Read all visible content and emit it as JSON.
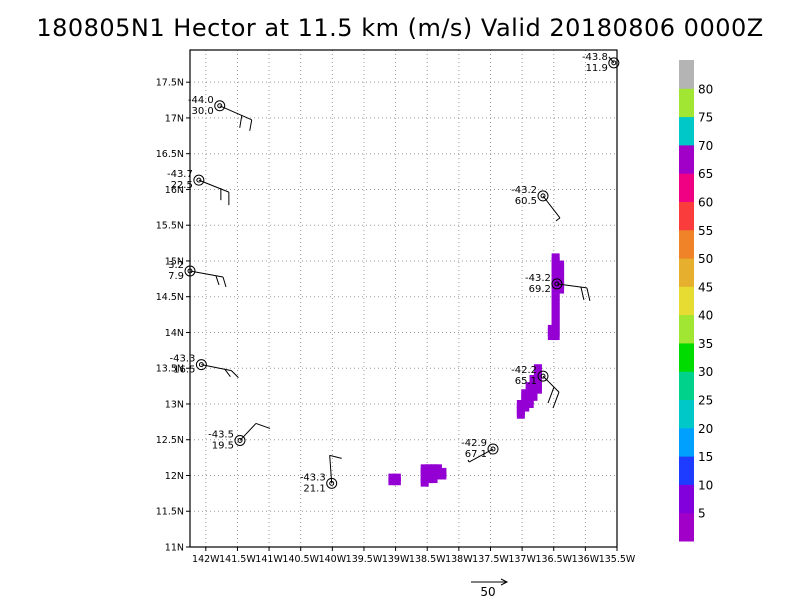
{
  "chart_data": {
    "type": "scatter",
    "title": "180805N1 Hector at 11.5 km (m/s) Valid 20180806 0000Z",
    "xlim": [
      -142.25,
      -135.5
    ],
    "ylim": [
      11.0,
      17.95
    ],
    "xticks": [
      -142,
      -141.5,
      -141,
      -140.5,
      -140,
      -139.5,
      -139,
      -138.5,
      -138,
      -137.5,
      -137,
      -136.5,
      -136,
      -135.5
    ],
    "xtick_labels": [
      "142W",
      "141.5W",
      "141W",
      "140.5W",
      "140W",
      "139.5W",
      "139W",
      "138.5W",
      "138W",
      "137.5W",
      "137W",
      "136.5W",
      "136W",
      "135.5W"
    ],
    "yticks": [
      11,
      11.5,
      12,
      12.5,
      13,
      13.5,
      14,
      14.5,
      15,
      15.5,
      16,
      16.5,
      17,
      17.5
    ],
    "ytick_labels": [
      "11N",
      "11.5N",
      "12N",
      "12.5N",
      "13N",
      "13.5N",
      "14N",
      "14.5N",
      "15N",
      "15.5N",
      "16N",
      "16.5N",
      "17N",
      "17.5N"
    ],
    "grid": true,
    "stations": [
      {
        "lon": -141.78,
        "lat": 17.17,
        "temp": "-44.0",
        "speed": "30.0"
      },
      {
        "lon": -142.11,
        "lat": 16.13,
        "temp": "-43.7",
        "speed": "22.5"
      },
      {
        "lon": -142.25,
        "lat": 14.86,
        "temp": "3.2",
        "speed": "7.9"
      },
      {
        "lon": -142.07,
        "lat": 13.55,
        "temp": "-43.3",
        "speed": "16.5"
      },
      {
        "lon": -141.46,
        "lat": 12.49,
        "temp": "-43.5",
        "speed": "19.5"
      },
      {
        "lon": -140.01,
        "lat": 11.89,
        "temp": "-43.3",
        "speed": "21.1"
      },
      {
        "lon": -137.46,
        "lat": 12.37,
        "temp": "-42.9",
        "speed": "67.1"
      },
      {
        "lon": -136.67,
        "lat": 13.39,
        "temp": "-42.2",
        "speed": "65.1"
      },
      {
        "lon": -136.45,
        "lat": 14.68,
        "temp": "-43.2",
        "speed": "69.2"
      },
      {
        "lon": -136.67,
        "lat": 15.91,
        "temp": "-43.2",
        "speed": "60.5"
      },
      {
        "lon": -135.55,
        "lat": 17.77,
        "temp": "-43.8",
        "speed": "11.9"
      }
    ],
    "colorbar": {
      "labels": [
        "5",
        "10",
        "15",
        "20",
        "25",
        "30",
        "35",
        "40",
        "45",
        "50",
        "55",
        "60",
        "65",
        "70",
        "75",
        "80"
      ],
      "colors": [
        "#a000c8",
        "#8200dc",
        "#1e3cff",
        "#00a0ff",
        "#00c8c8",
        "#00d28c",
        "#00dc00",
        "#a0e632",
        "#e6dc32",
        "#e6af2d",
        "#f08228",
        "#fa3c3c",
        "#f00082",
        "#a000c8",
        "#00c8c8",
        "#a0e632",
        "#b4b4b4"
      ]
    },
    "reference_vector": {
      "label": "50"
    }
  }
}
